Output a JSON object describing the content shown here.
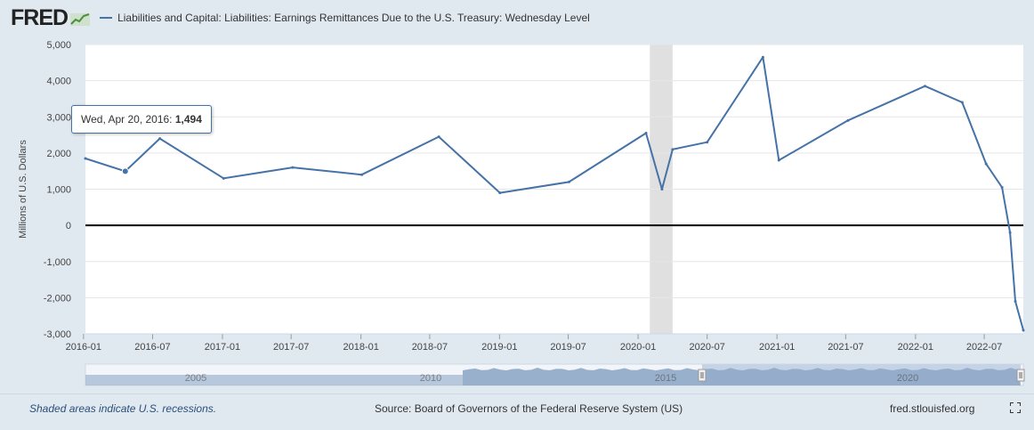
{
  "header": {
    "logo_text": "FRED",
    "series_title": "Liabilities and Capital: Liabilities: Earnings Remittances Due to the U.S. Treasury: Wednesday Level"
  },
  "tooltip": {
    "date": "Wed, Apr 20, 2016:",
    "value": "1,494"
  },
  "footer": {
    "recession_note": "Shaded areas indicate U.S. recessions.",
    "source": "Source: Board of Governors of the Federal Reserve System (US)",
    "site": "fred.stlouisfed.org"
  },
  "colors": {
    "series": "#4572a7",
    "recession": "#e0e0e0",
    "zero_line": "#000000",
    "navigator_fill": "#8fa8c8",
    "navigator_window": "#c5d3e6"
  },
  "chart_data": {
    "type": "line",
    "title": "",
    "xlabel": "",
    "ylabel": "Millions of U.S. Dollars",
    "ylim": [
      -3000,
      5000
    ],
    "y_ticks": [
      "5,000",
      "4,000",
      "3,000",
      "2,000",
      "1,000",
      "0",
      "-1,000",
      "-2,000",
      "-3,000"
    ],
    "x_ticks": [
      "2016-01",
      "2016-07",
      "2017-01",
      "2017-07",
      "2018-01",
      "2018-07",
      "2019-01",
      "2019-07",
      "2020-01",
      "2020-07",
      "2021-01",
      "2021-07",
      "2022-01",
      "2022-07"
    ],
    "x_range": [
      "2016-01-06",
      "2022-10-12"
    ],
    "grid": true,
    "recessions": [
      [
        "2020-02",
        "2020-04"
      ]
    ],
    "navigator_labels": [
      "2005",
      "2010",
      "2015",
      "2020"
    ],
    "series": [
      {
        "x": [
          "2016-01-06",
          "2016-04-20",
          "2016-07-20",
          "2017-01-04",
          "2017-07-05",
          "2018-01-03",
          "2018-07-25",
          "2019-01-02",
          "2019-07-03",
          "2020-01-22",
          "2020-03-04",
          "2020-04-01",
          "2020-07-01",
          "2020-11-25",
          "2021-01-06",
          "2021-07-07",
          "2022-01-26",
          "2022-05-04",
          "2022-07-06",
          "2022-08-17",
          "2022-09-07",
          "2022-09-21",
          "2022-10-12"
        ],
        "values": [
          1850,
          1494,
          2400,
          1300,
          1600,
          1400,
          2450,
          900,
          1200,
          2550,
          1000,
          2100,
          2300,
          4650,
          1800,
          2900,
          3850,
          3400,
          1700,
          1050,
          -200,
          -2100,
          -2900
        ]
      }
    ]
  }
}
